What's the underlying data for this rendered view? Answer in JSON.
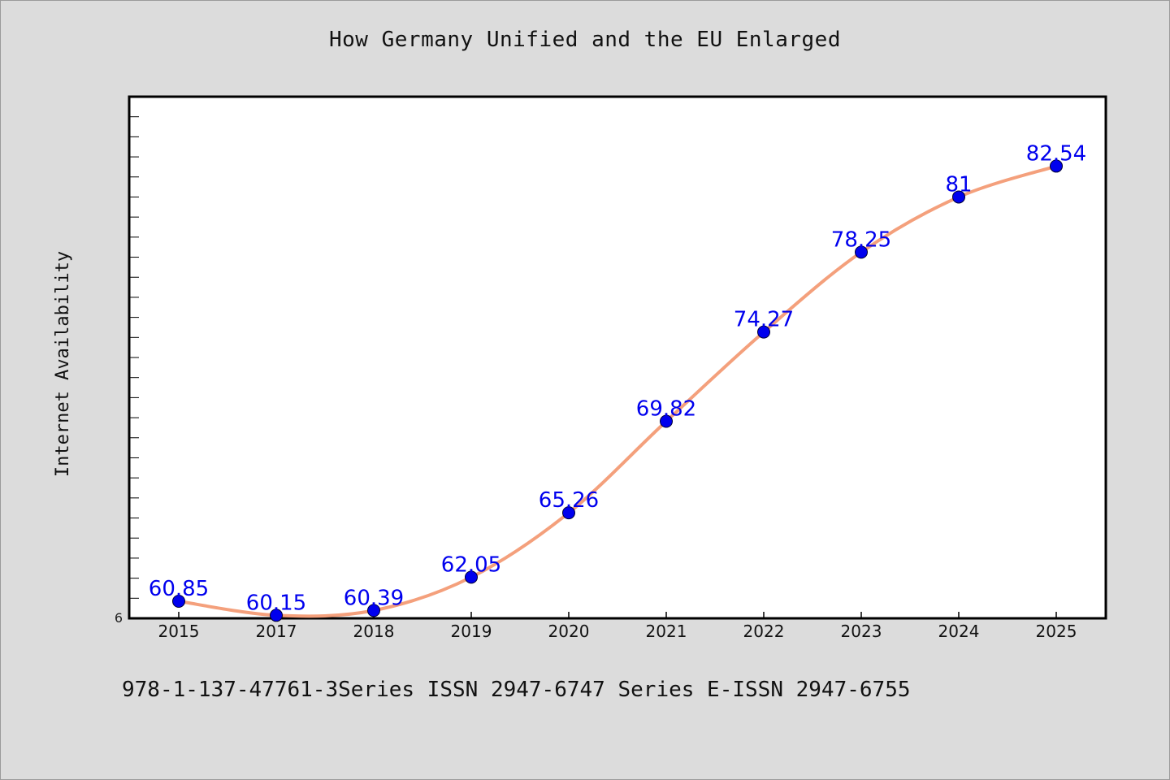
{
  "chart_data": {
    "type": "line",
    "title": "How Germany Unified and the EU Enlarged",
    "xlabel": "",
    "ylabel": "Internet Availability",
    "categories": [
      "2015",
      "2017",
      "2018",
      "2019",
      "2020",
      "2021",
      "2022",
      "2023",
      "2024",
      "2025"
    ],
    "series": [
      {
        "values": [
          60.85,
          60.15,
          60.39,
          62.05,
          65.26,
          69.82,
          74.27,
          78.25,
          81,
          82.54
        ],
        "labels": [
          "60.85",
          "60.15",
          "60.39",
          "62.05",
          "65.26",
          "69.82",
          "74.27",
          "78.25",
          "81",
          "82.54"
        ]
      }
    ],
    "ylim": [
      60,
      86
    ],
    "y_tick_label": "6",
    "grid": false,
    "colors": {
      "line": "#f4a07c",
      "marker": "#0000ee",
      "label": "#0000ee",
      "plot_bg": "#ffffff",
      "page_bg": "#dcdcdc"
    }
  },
  "footer": {
    "text": "978-1-137-47761-3Series ISSN 2947-6747 Series E-ISSN 2947-6755"
  }
}
